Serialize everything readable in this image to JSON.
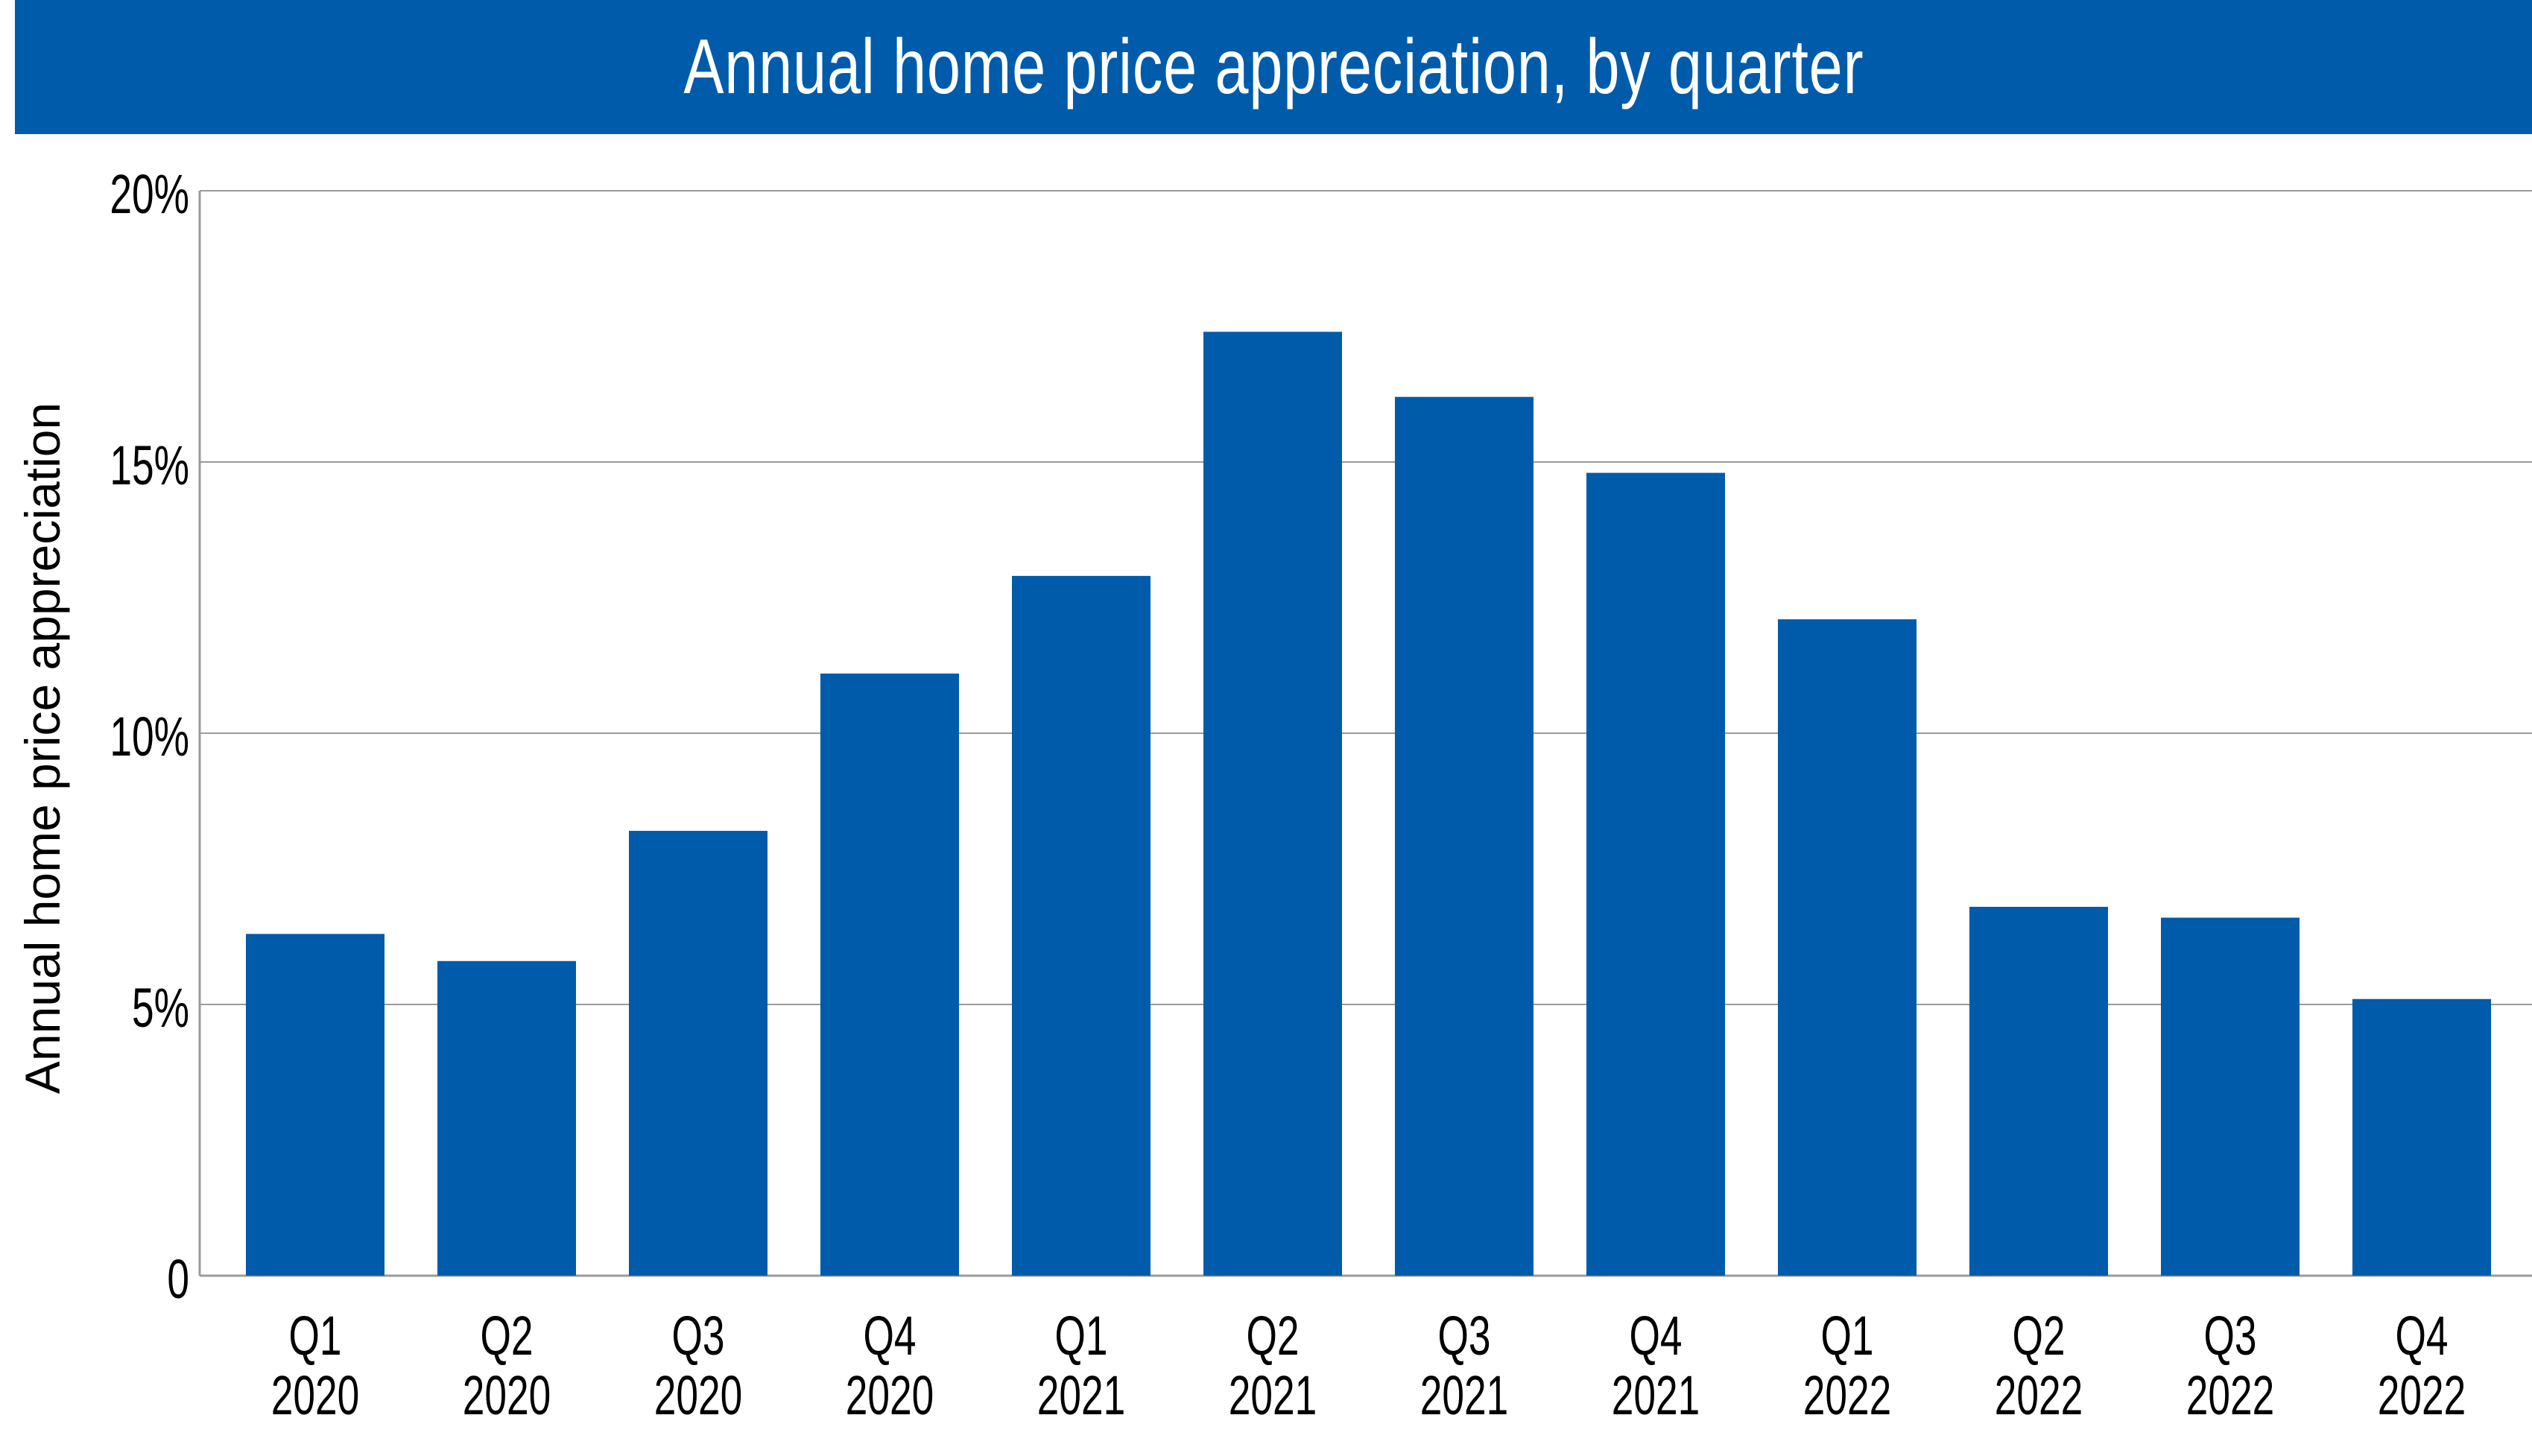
{
  "chart_data": {
    "type": "bar",
    "title": "Annual home price appreciation, by quarter",
    "ylabel": "Annual home price appreciation",
    "xlabel": "",
    "categories": [
      [
        "Q1",
        "2020"
      ],
      [
        "Q2",
        "2020"
      ],
      [
        "Q3",
        "2020"
      ],
      [
        "Q4",
        "2020"
      ],
      [
        "Q1",
        "2021"
      ],
      [
        "Q2",
        "2021"
      ],
      [
        "Q3",
        "2021"
      ],
      [
        "Q4",
        "2021"
      ],
      [
        "Q1",
        "2022"
      ],
      [
        "Q2",
        "2022"
      ],
      [
        "Q3",
        "2022"
      ],
      [
        "Q4",
        "2022"
      ]
    ],
    "values": [
      6.3,
      5.8,
      8.2,
      11.1,
      12.9,
      17.4,
      16.2,
      14.8,
      12.1,
      6.8,
      6.6,
      5.1
    ],
    "ylim": [
      0,
      20
    ],
    "yticks": [
      0,
      5,
      10,
      15,
      20
    ],
    "ytick_labels": [
      "0",
      "5%",
      "10%",
      "15%",
      "20%"
    ],
    "grid": true,
    "colors": {
      "bar": "#005BAA",
      "title_bg": "#005BAA",
      "title_text": "#FFFFFF",
      "grid": "#9A9A9A"
    }
  }
}
